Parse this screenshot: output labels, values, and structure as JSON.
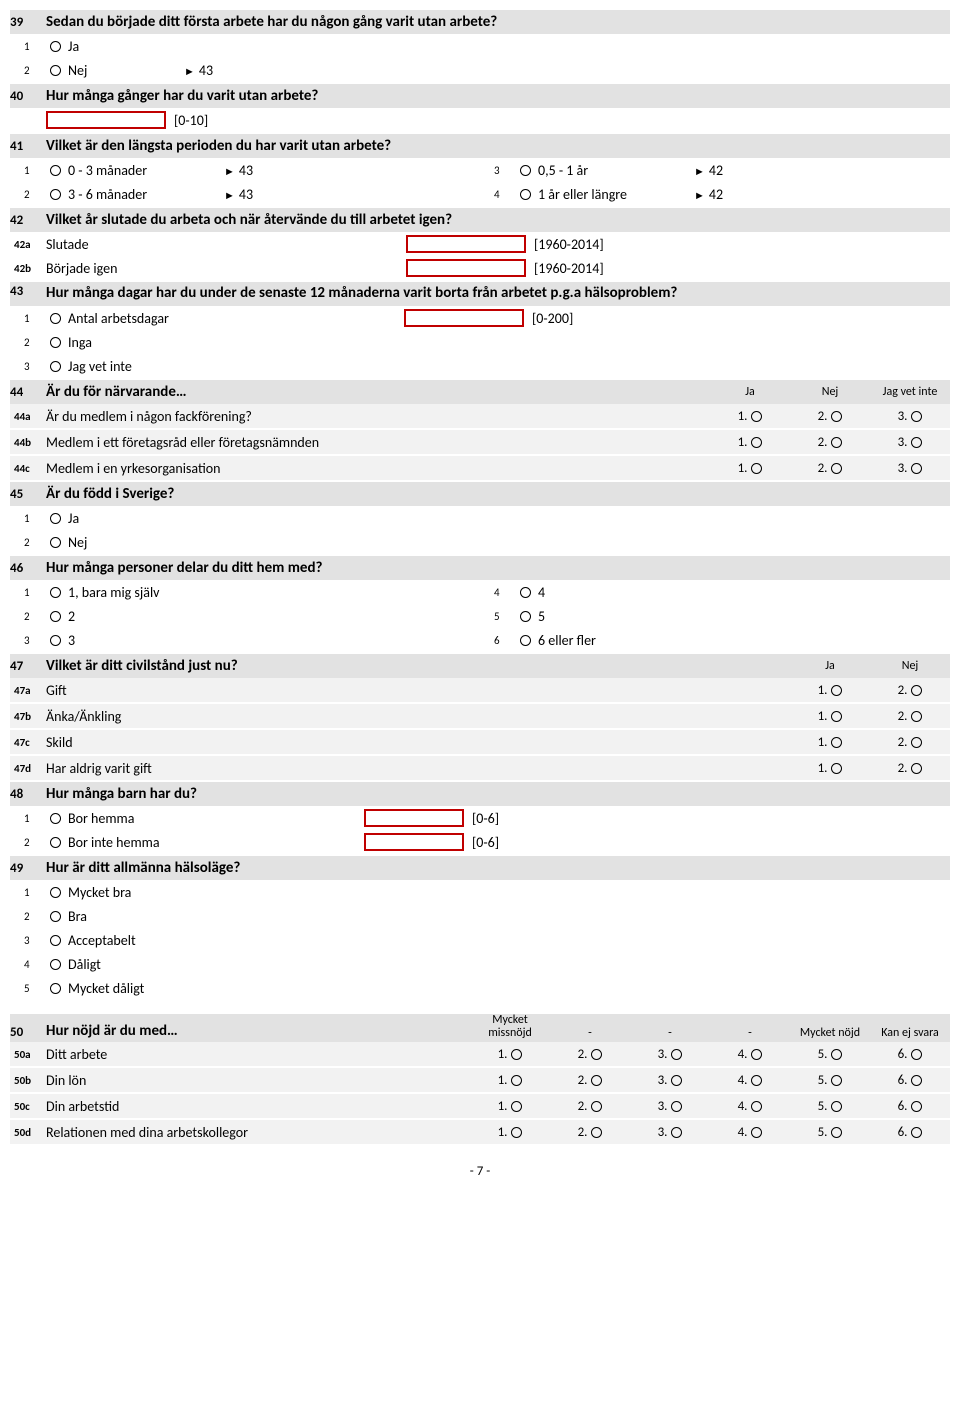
{
  "q39": {
    "num": "39",
    "text": "Sedan du började ditt första arbete har du någon gång varit utan arbete?",
    "opts": [
      {
        "n": "1",
        "label": "Ja",
        "skip": ""
      },
      {
        "n": "2",
        "label": "Nej",
        "skip": "43"
      }
    ]
  },
  "q40": {
    "num": "40",
    "text": "Hur många gånger har du varit utan arbete?",
    "hint": "[0-10]"
  },
  "q41": {
    "num": "41",
    "text": "Vilket är den längsta perioden du har varit utan arbete?",
    "opts": [
      {
        "n": "1",
        "label": "0 - 3 månader",
        "skip": "43"
      },
      {
        "n": "2",
        "label": "3 - 6 månader",
        "skip": "43"
      },
      {
        "n": "3",
        "label": "0,5 - 1 år",
        "skip": "42"
      },
      {
        "n": "4",
        "label": "1 år eller längre",
        "skip": "42"
      }
    ]
  },
  "q42": {
    "num": "42",
    "text": "Vilket år slutade du arbeta och när återvände du till arbetet igen?",
    "subs": [
      {
        "n": "42a",
        "label": "Slutade",
        "hint": "[1960-2014]"
      },
      {
        "n": "42b",
        "label": "Började igen",
        "hint": "[1960-2014]"
      }
    ]
  },
  "q43": {
    "num": "43",
    "text": "Hur många dagar har du under de senaste 12 månaderna varit borta från arbetet p.g.a hälsoproblem?",
    "opts": [
      {
        "n": "1",
        "label": "Antal arbetsdagar",
        "hint": "[0-200]"
      },
      {
        "n": "2",
        "label": "Inga",
        "hint": ""
      },
      {
        "n": "3",
        "label": "Jag vet inte",
        "hint": ""
      }
    ]
  },
  "q44": {
    "num": "44",
    "text": "Är du för närvarande…",
    "headers": [
      "Ja",
      "Nej",
      "Jag vet inte"
    ],
    "rows": [
      {
        "n": "44a",
        "label": "Är du medlem i någon fackförening?"
      },
      {
        "n": "44b",
        "label": "Medlem i ett företagsråd eller företagsnämnden"
      },
      {
        "n": "44c",
        "label": "Medlem i en yrkesorganisation"
      }
    ],
    "cellvals": [
      "1.",
      "2.",
      "3."
    ]
  },
  "q45": {
    "num": "45",
    "text": "Är du född i Sverige?",
    "opts": [
      {
        "n": "1",
        "label": "Ja"
      },
      {
        "n": "2",
        "label": "Nej"
      }
    ]
  },
  "q46": {
    "num": "46",
    "text": "Hur många personer delar du ditt hem med?",
    "opts": [
      {
        "n": "1",
        "label": "1, bara mig själv"
      },
      {
        "n": "2",
        "label": "2"
      },
      {
        "n": "3",
        "label": "3"
      },
      {
        "n": "4",
        "label": "4"
      },
      {
        "n": "5",
        "label": "5"
      },
      {
        "n": "6",
        "label": "6 eller fler"
      }
    ]
  },
  "q47": {
    "num": "47",
    "text": "Vilket är ditt civilstånd just nu?",
    "headers": [
      "Ja",
      "Nej"
    ],
    "rows": [
      {
        "n": "47a",
        "label": "Gift"
      },
      {
        "n": "47b",
        "label": "Änka/Änkling"
      },
      {
        "n": "47c",
        "label": "Skild"
      },
      {
        "n": "47d",
        "label": "Har aldrig varit gift"
      }
    ],
    "cellvals": [
      "1.",
      "2."
    ]
  },
  "q48": {
    "num": "48",
    "text": "Hur många barn har du?",
    "opts": [
      {
        "n": "1",
        "label": "Bor hemma",
        "hint": "[0-6]"
      },
      {
        "n": "2",
        "label": "Bor inte hemma",
        "hint": "[0-6]"
      }
    ]
  },
  "q49": {
    "num": "49",
    "text": "Hur är ditt allmänna hälsoläge?",
    "opts": [
      {
        "n": "1",
        "label": "Mycket bra"
      },
      {
        "n": "2",
        "label": "Bra"
      },
      {
        "n": "3",
        "label": "Acceptabelt"
      },
      {
        "n": "4",
        "label": "Dåligt"
      },
      {
        "n": "5",
        "label": "Mycket dåligt"
      }
    ]
  },
  "q50": {
    "num": "50",
    "text": "Hur nöjd är du med…",
    "headers": [
      "Mycket missnöjd",
      "-",
      "-",
      "-",
      "Mycket nöjd",
      "Kan ej svara"
    ],
    "rows": [
      {
        "n": "50a",
        "label": "Ditt arbete"
      },
      {
        "n": "50b",
        "label": "Din lön"
      },
      {
        "n": "50c",
        "label": "Din arbetstid"
      },
      {
        "n": "50d",
        "label": "Relationen med dina arbetskollegor"
      }
    ],
    "cellvals": [
      "1.",
      "2.",
      "3.",
      "4.",
      "5.",
      "6."
    ]
  },
  "pagefoot": "- 7 -"
}
